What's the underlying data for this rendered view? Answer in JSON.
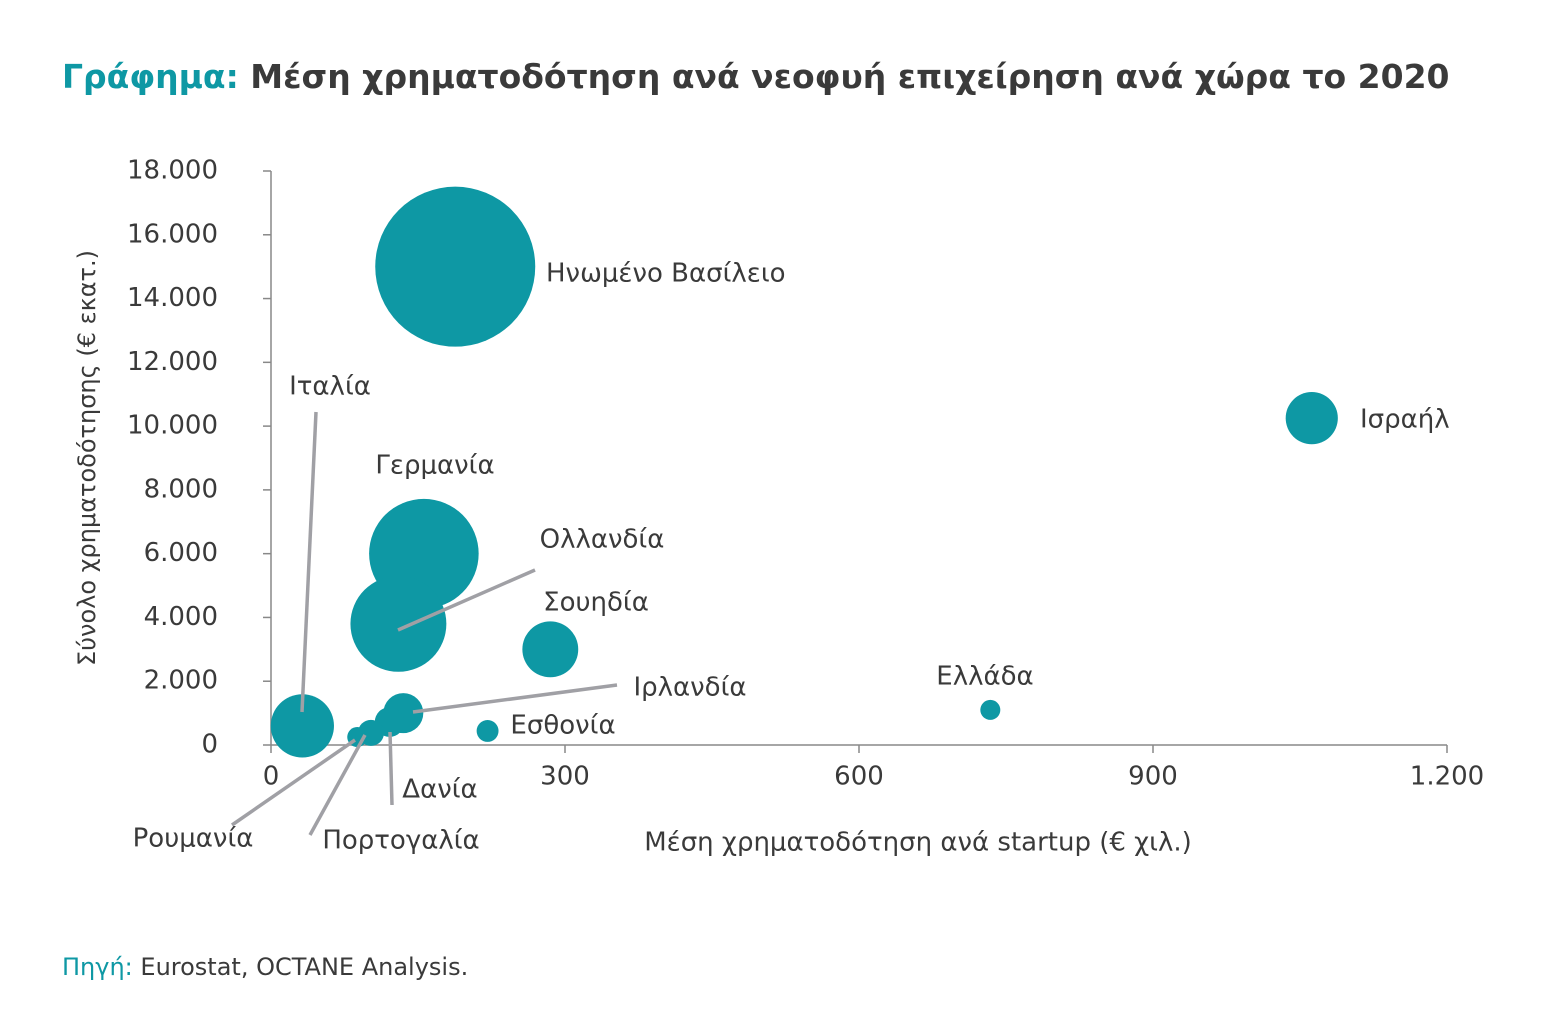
{
  "chart_data": {
    "type": "bubble",
    "title_prefix": "Γράφημα:",
    "title": "Μέση χρηματοδότηση ανά νεοφυή επιχείρηση ανά χώρα το 2020",
    "x_label": "Μέση χρηματοδότηση ανά startup (€ χιλ.)",
    "y_label": "Σύνολο χρηματοδότησης (€ εκατ.)",
    "labels": [
      "Ηνωμένο Βασίλειο",
      "Ισραήλ",
      "Γερμανία",
      "Ολλανδία",
      "Σουηδία",
      "Ιταλία",
      "Ιρλανδία",
      "Εσθονία",
      "Ελλάδα",
      "Δανία",
      "Πορτογαλία",
      "Ρουμανία"
    ],
    "x": [
      188,
      1062,
      156,
      130,
      285,
      32,
      135,
      221,
      734,
      121,
      102,
      88
    ],
    "y": [
      15000,
      10250,
      6000,
      3800,
      3000,
      600,
      1000,
      440,
      1100,
      720,
      380,
      250
    ],
    "sizes": [
      64,
      6.8,
      30,
      23,
      7.8,
      10,
      4,
      1.2,
      1,
      2.2,
      1.7,
      1
    ],
    "color": "#0e98a4",
    "xlim": [
      0,
      1200
    ],
    "ylim": [
      0,
      18000
    ],
    "xticks": [
      0,
      300,
      600,
      900,
      {
        "value": 1200,
        "label": "1.200"
      }
    ],
    "yticks": [
      0,
      {
        "value": 2000,
        "label": "2.000"
      },
      {
        "value": 4000,
        "label": "4.000"
      },
      {
        "value": 6000,
        "label": "6.000"
      },
      {
        "value": 8000,
        "label": "8.000"
      },
      {
        "value": 10000,
        "label": "10.000"
      },
      {
        "value": 12000,
        "label": "12.000"
      },
      {
        "value": 14000,
        "label": "14.000"
      },
      {
        "value": 16000,
        "label": "16.000"
      },
      {
        "value": 18000,
        "label": "18.000"
      }
    ],
    "source_label": "Πηγή:",
    "source": "Eurostat, OCTANE Analysis."
  }
}
